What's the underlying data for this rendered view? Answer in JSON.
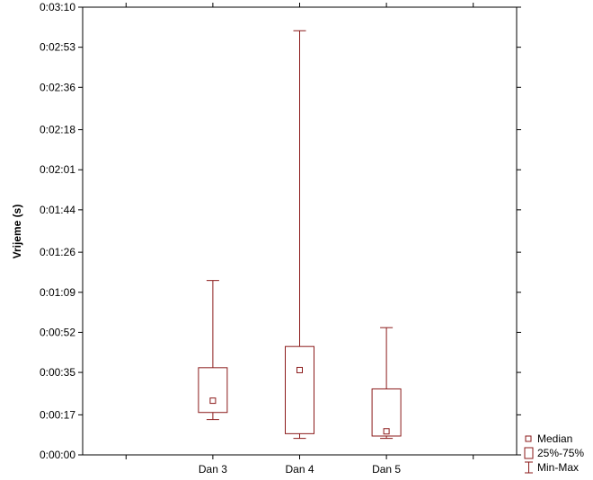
{
  "chart_data": {
    "type": "box",
    "title": "",
    "xlabel": "",
    "ylabel": "Vrijeme (s)",
    "y_ticks_seconds": [
      0,
      17,
      35,
      52,
      69,
      86,
      104,
      121,
      138,
      156,
      173,
      190
    ],
    "y_tick_labels": [
      "0:00:00",
      "0:00:17",
      "0:00:35",
      "0:00:52",
      "0:01:09",
      "0:01:26",
      "0:01:44",
      "0:02:01",
      "0:02:18",
      "0:02:36",
      "0:02:53",
      "0:03:10"
    ],
    "ylim": [
      0,
      190
    ],
    "categories": [
      "",
      "Dan 3",
      "Dan 4",
      "Dan 5",
      ""
    ],
    "boxes": [
      {
        "category": "Dan 3",
        "min": 15,
        "q1": 18,
        "median": 23,
        "q3": 37,
        "max": 74
      },
      {
        "category": "Dan 4",
        "min": 7,
        "q1": 9,
        "median": 36,
        "q3": 46,
        "max": 180
      },
      {
        "category": "Dan 5",
        "min": 7,
        "q1": 8,
        "median": 10,
        "q3": 28,
        "max": 54
      }
    ],
    "grid": false,
    "legend": {
      "position": "bottom-right",
      "entries": [
        "Median",
        "25%-75%",
        "Min-Max"
      ]
    },
    "colors": {
      "box": "#8b1a1a",
      "axis": "#000000"
    }
  }
}
